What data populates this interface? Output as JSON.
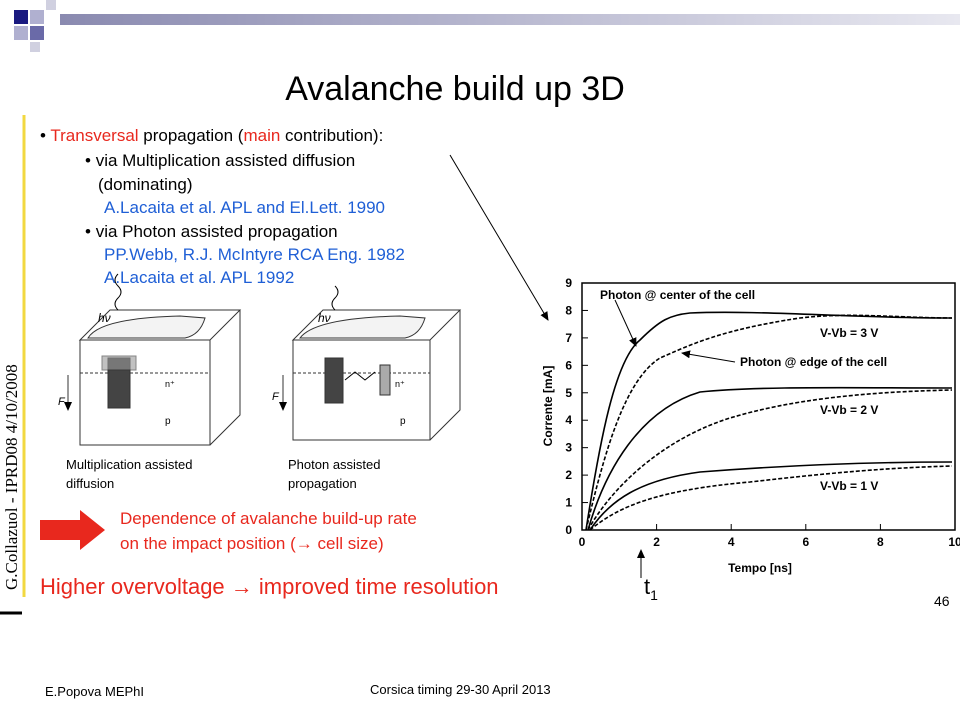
{
  "slide": {
    "title": "Avalanche build up 3D",
    "side_note": "G.Collazuol - IPRD08 4/10/2008",
    "bullet1": [
      "Transversal",
      " propagation (",
      "main",
      " contribution):"
    ],
    "sub1": "via Multiplication assisted diffusion",
    "sub1b": "(dominating)",
    "ref1": "A.Lacaita et al. APL and El.Lett. 1990",
    "sub2": "via Photon assisted propagation",
    "ref2": "PP.Webb, R.J. McIntyre RCA Eng. 1982",
    "ref3": "A.Lacaita et al. APL  1992",
    "diagram1": {
      "labels": [
        "hν",
        "n⁺",
        "p",
        "F"
      ],
      "caption": [
        "Multiplication assisted",
        "diffusion"
      ]
    },
    "diagram2": {
      "labels": [
        "hν",
        "n⁺",
        "p",
        "F"
      ],
      "caption": [
        "Photon assisted",
        "propagation"
      ]
    },
    "dependence": [
      "Dependence of avalanche build-up rate",
      "on the impact position (→ cell size)"
    ],
    "conclusion": "Higher overvoltage  →  improved time resolution",
    "t1": "t",
    "t1_sub": "1",
    "page_number": "46",
    "footer_left": "E.Popova MEPhI",
    "footer_center": "Corsica timing 29-30 April 2013",
    "figure": {
      "xlabel": "Tempo [ns]",
      "ylabel": "Corrente [mA]",
      "xticks": [
        0,
        2,
        4,
        6,
        8,
        10
      ],
      "yticks": [
        0,
        1,
        2,
        3,
        4,
        5,
        6,
        7,
        8,
        9
      ],
      "annotations": [
        "Photon @ center of the cell",
        "Photon @ edge of the cell",
        "V-Vb = 3 V",
        "V-Vb = 2 V",
        "V-Vb = 1 V"
      ]
    }
  }
}
